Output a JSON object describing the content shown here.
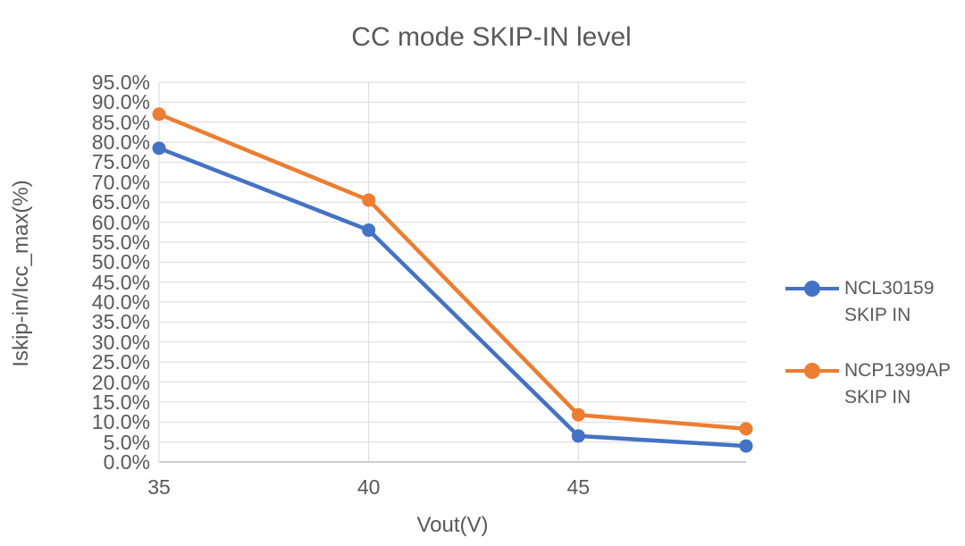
{
  "chart_data": {
    "type": "line",
    "title": "CC mode SKIP-IN level",
    "xlabel": "Vout(V)",
    "ylabel": "Iskip-in/Icc_max(%)",
    "xlim": [
      35,
      49
    ],
    "ylim": [
      0,
      95
    ],
    "y_tick_step": 5,
    "grid": true,
    "legend_position": "right",
    "x": [
      35,
      40,
      45,
      49
    ],
    "x_ticks": [
      35,
      40,
      45
    ],
    "x_tick_labels": [
      "35",
      "40",
      "45"
    ],
    "y_tick_labels": [
      "95.0%",
      "90.0%",
      "85.0%",
      "80.0%",
      "75.0%",
      "70.0%",
      "65.0%",
      "60.0%",
      "55.0%",
      "50.0%",
      "45.0%",
      "40.0%",
      "35.0%",
      "30.0%",
      "25.0%",
      "20.0%",
      "15.0%",
      "10.0%",
      "5.0%",
      "0.0%"
    ],
    "series": [
      {
        "name": "NCL30159 SKIP IN",
        "legend_lines": [
          "NCL30159",
          "SKIP IN"
        ],
        "color": "#4472C4",
        "values": [
          78.5,
          58.0,
          6.5,
          4.0
        ]
      },
      {
        "name": "NCP1399AP SKIP IN",
        "legend_lines": [
          "NCP1399AP",
          "SKIP IN"
        ],
        "color": "#ED7D31",
        "values": [
          87.0,
          65.5,
          11.8,
          8.3
        ]
      }
    ],
    "colors": {
      "gridline": "#D9D9D9",
      "axis_line": "#BFBFBF",
      "text": "#595959"
    }
  }
}
